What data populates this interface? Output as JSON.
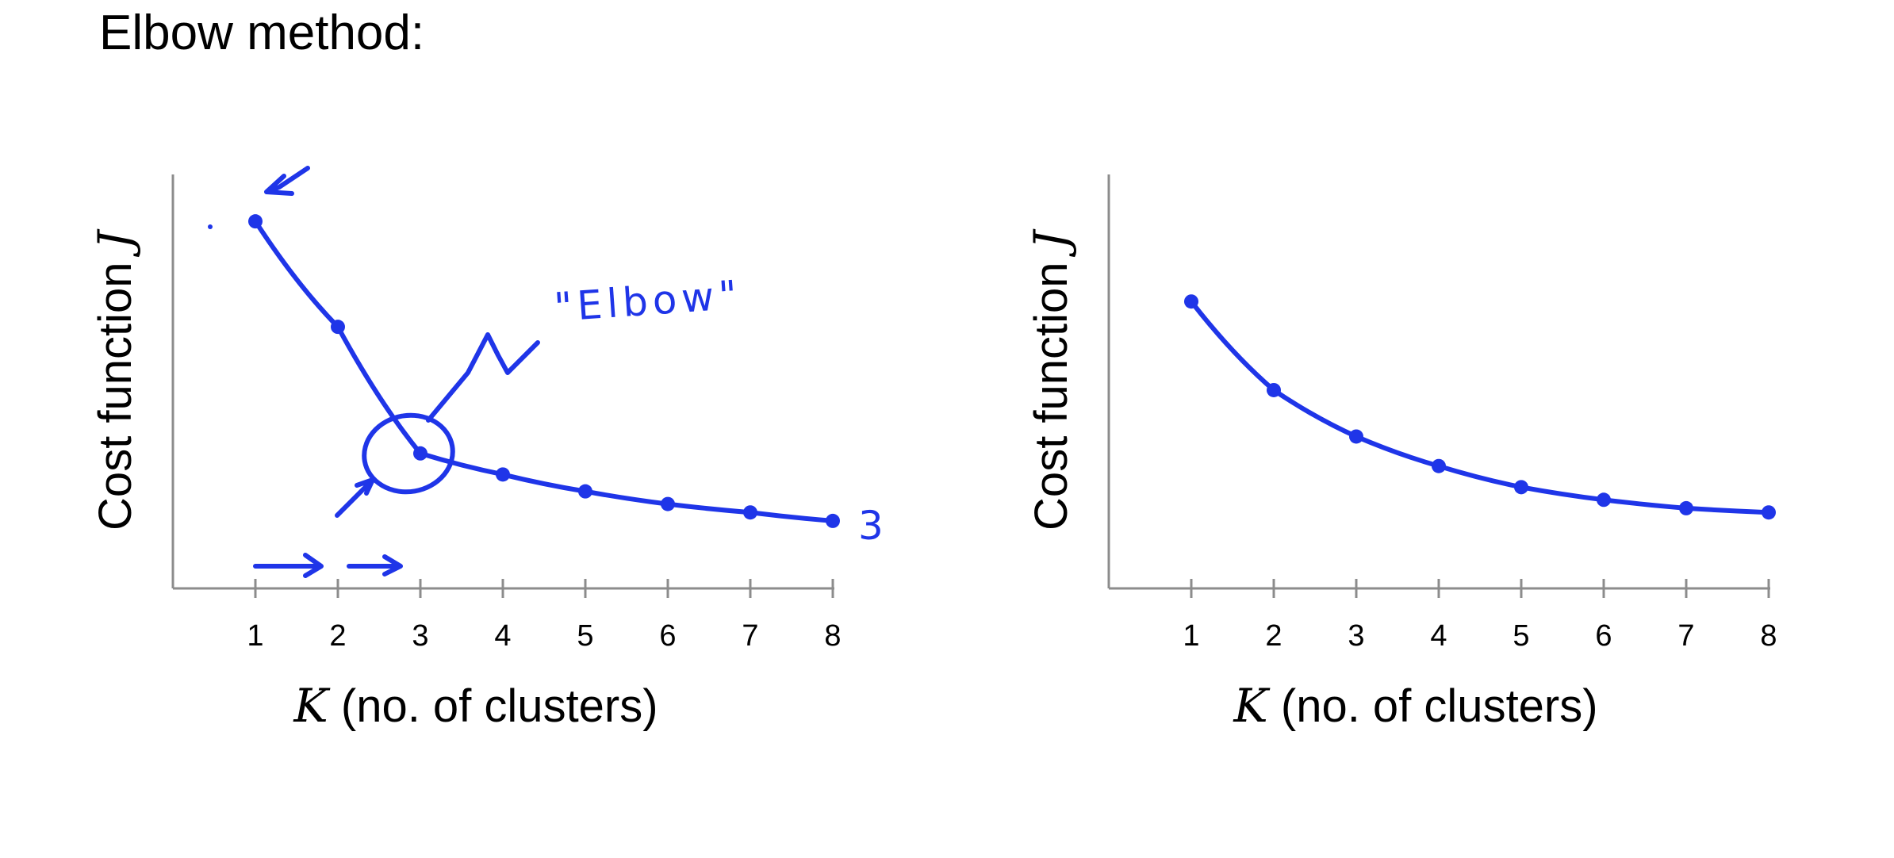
{
  "slide": {
    "title": "Elbow method:"
  },
  "chart_data": [
    {
      "type": "line",
      "xlabel_var": "K",
      "xlabel_rest": " (no. of clusters)",
      "ylabel_text": "Cost function ",
      "ylabel_var": "J",
      "x": [
        1,
        2,
        3,
        4,
        5,
        6,
        7,
        8
      ],
      "y": [
        8.7,
        6.2,
        3.2,
        2.7,
        2.3,
        2.0,
        1.8,
        1.6
      ],
      "xlim": [
        0,
        8
      ],
      "ylim": [
        0,
        10
      ],
      "grid": false,
      "annotations": {
        "elbow_label": "\"Elbow\"",
        "elbow_at": 3,
        "handwritten_digit": "3"
      },
      "stroke_color": "#1f35e8"
    },
    {
      "type": "line",
      "xlabel_var": "K",
      "xlabel_rest": " (no. of clusters)",
      "ylabel_text": "Cost function ",
      "ylabel_var": "J",
      "x": [
        1,
        2,
        3,
        4,
        5,
        6,
        7,
        8
      ],
      "y": [
        6.8,
        4.7,
        3.6,
        2.9,
        2.4,
        2.1,
        1.9,
        1.8
      ],
      "xlim": [
        0,
        8
      ],
      "ylim": [
        0,
        10
      ],
      "grid": false,
      "stroke_color": "#1f35e8"
    }
  ]
}
